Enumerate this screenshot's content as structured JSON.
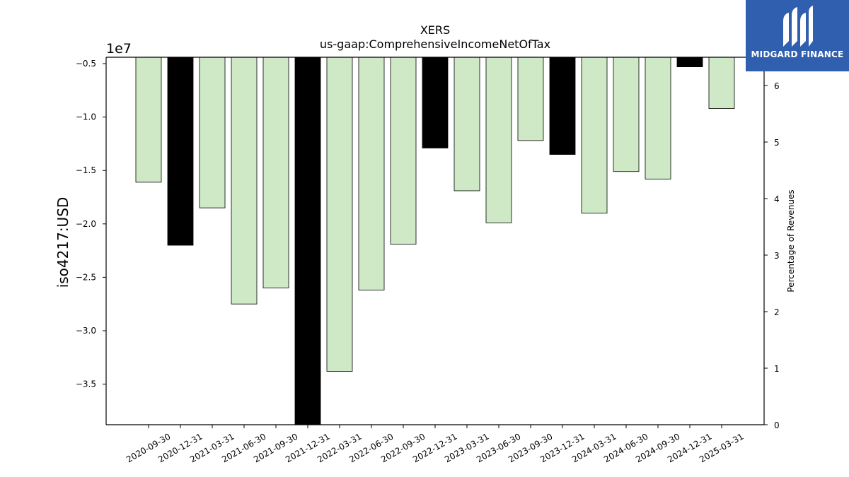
{
  "chart_data": {
    "type": "bar",
    "title": "XERS",
    "subtitle": "us-gaap:ComprehensiveIncomeNetOfTax",
    "ylabel": "iso4217:USD",
    "y2label": "Percentage of Revenues",
    "scale_label": "1e7",
    "ylim": [
      -3.88,
      -0.44
    ],
    "y_ticks": [
      -0.5,
      -1.0,
      -1.5,
      -2.0,
      -2.5,
      -3.0,
      -3.5
    ],
    "y_tick_labels": [
      "−0.5",
      "−1.0",
      "−1.5",
      "−2.0",
      "−2.5",
      "−3.0",
      "−3.5"
    ],
    "y2lim": [
      0,
      6.5
    ],
    "y2_ticks": [
      0,
      1,
      2,
      3,
      4,
      5,
      6
    ],
    "y2_tick_labels": [
      "0",
      "1",
      "2",
      "3",
      "4",
      "5",
      "6"
    ],
    "categories": [
      "2020-09-30",
      "2020-12-31",
      "2021-03-31",
      "2021-06-30",
      "2021-09-30",
      "2021-12-31",
      "2022-03-31",
      "2022-06-30",
      "2022-09-30",
      "2022-12-31",
      "2023-03-31",
      "2023-06-30",
      "2023-09-30",
      "2023-12-31",
      "2024-03-31",
      "2024-06-30",
      "2024-09-30",
      "2024-12-31",
      "2025-03-31"
    ],
    "values": [
      -1.61,
      -2.2,
      -1.85,
      -2.75,
      -2.6,
      -3.9,
      -3.38,
      -2.62,
      -2.19,
      -1.29,
      -1.69,
      -1.99,
      -1.22,
      -1.35,
      -1.9,
      -1.51,
      -1.58,
      -0.53,
      -0.92
    ],
    "bar_colors": [
      "#cfe9c6",
      "#000000",
      "#cfe9c6",
      "#cfe9c6",
      "#cfe9c6",
      "#000000",
      "#cfe9c6",
      "#cfe9c6",
      "#cfe9c6",
      "#000000",
      "#cfe9c6",
      "#cfe9c6",
      "#cfe9c6",
      "#000000",
      "#cfe9c6",
      "#cfe9c6",
      "#cfe9c6",
      "#000000",
      "#cfe9c6"
    ],
    "grid": false
  },
  "logo": {
    "text": "MIDGARD FINANCE",
    "bg_color": "#2f5fae"
  }
}
